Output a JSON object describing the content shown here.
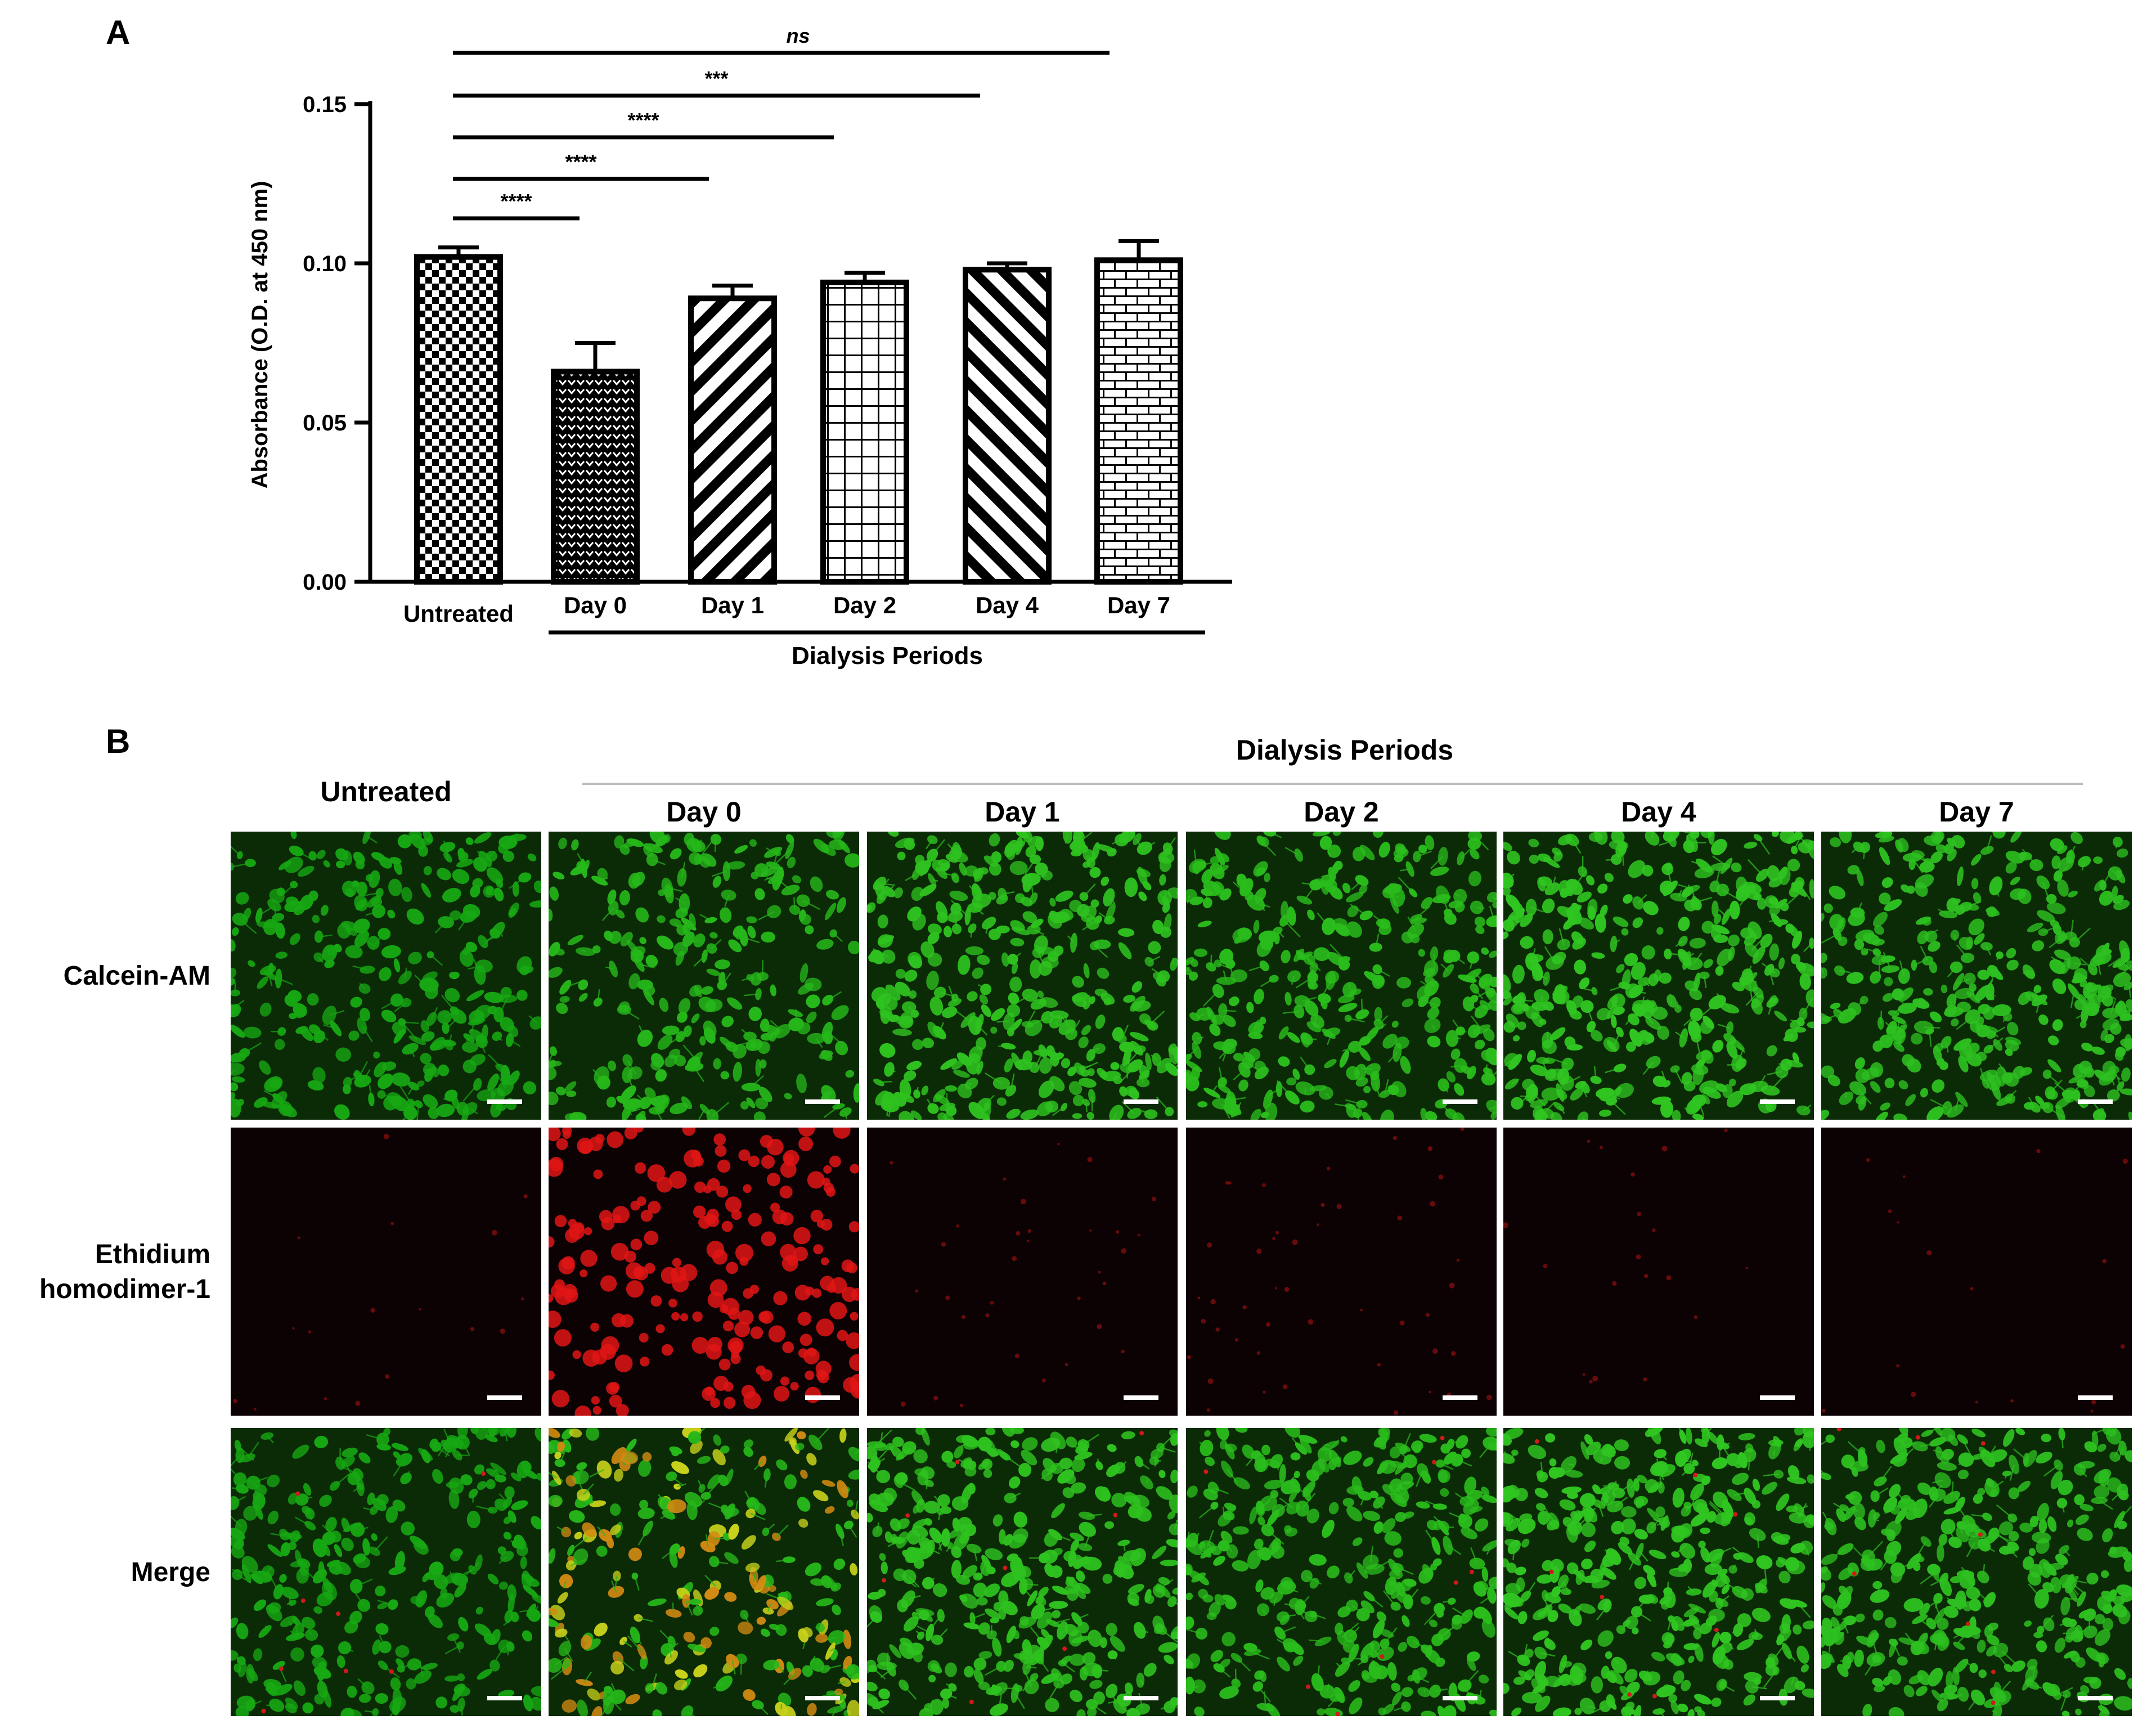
{
  "panel_a": {
    "label": "A"
  },
  "panel_b": {
    "label": "B",
    "group_label": "Dialysis Periods",
    "columns": [
      {
        "label": "Untreated",
        "tint": "#17a813",
        "density": 0.55
      },
      {
        "label": "Day 0",
        "tint": "#26b81a",
        "density": 0.45
      },
      {
        "label": "Day 1",
        "tint": "#2ec21f",
        "density": 0.85
      },
      {
        "label": "Day 2",
        "tint": "#2abd1c",
        "density": 0.7
      },
      {
        "label": "Day 4",
        "tint": "#30c621",
        "density": 0.9
      },
      {
        "label": "Day 7",
        "tint": "#2dc020",
        "density": 0.8
      }
    ],
    "rows": [
      {
        "label_lines": [
          "Calcein-AM"
        ],
        "channel": "green"
      },
      {
        "label_lines": [
          "Ethidium",
          "homodimer-1"
        ],
        "channel": "red"
      },
      {
        "label_lines": [
          "Merge"
        ],
        "channel": "merge"
      }
    ],
    "red_signal": [
      0.05,
      0.95,
      0.12,
      0.18,
      0.06,
      0.05
    ]
  },
  "chart_data": {
    "type": "bar",
    "ylabel": "Absorbance (O.D. at 450 nm)",
    "xlabel": "Dialysis Periods",
    "categories": [
      "Untreated",
      "Day 0",
      "Day 1",
      "Day 2",
      "Day 4",
      "Day 7"
    ],
    "values": [
      0.102,
      0.066,
      0.089,
      0.094,
      0.098,
      0.101
    ],
    "errors": [
      0.003,
      0.009,
      0.004,
      0.003,
      0.002,
      0.006
    ],
    "yticks": [
      "0.00",
      "0.05",
      "0.10",
      "0.15"
    ],
    "ylim": [
      0,
      0.15
    ],
    "patterns": [
      "checker",
      "dots",
      "diag-back",
      "grid",
      "diag-fwd",
      "brick"
    ],
    "significance": [
      {
        "from": 0,
        "to": 1,
        "label": "****"
      },
      {
        "from": 0,
        "to": 2,
        "label": "****"
      },
      {
        "from": 0,
        "to": 3,
        "label": "****"
      },
      {
        "from": 0,
        "to": 4,
        "label": "***"
      },
      {
        "from": 0,
        "to": 5,
        "label": "ns"
      }
    ]
  }
}
